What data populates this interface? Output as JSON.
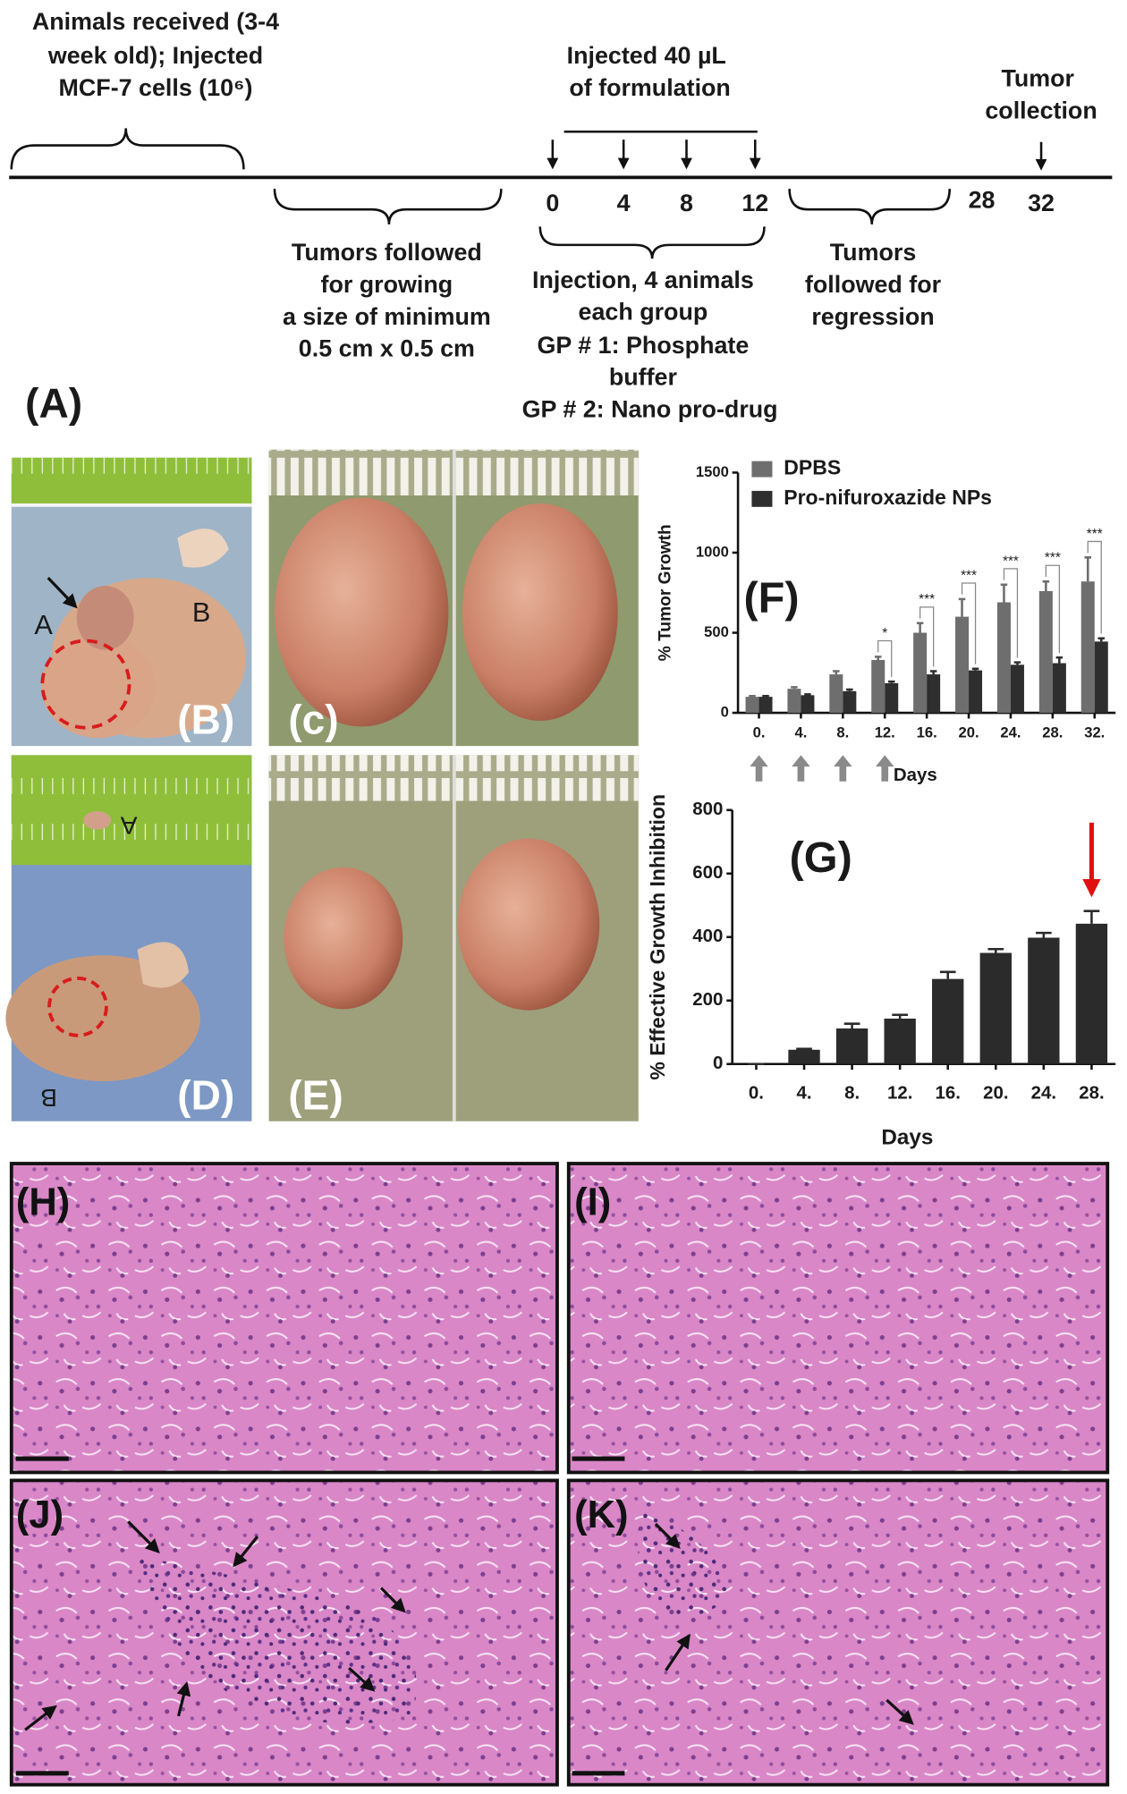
{
  "timeline": {
    "received": [
      "Animals  received (3-4",
      "week old); Injected",
      "MCF-7 cells (10⁶)"
    ],
    "injected": [
      "Injected 40 µL",
      "of formulation"
    ],
    "collection": [
      "Tumor",
      "collection"
    ],
    "days": [
      0,
      4,
      8,
      12,
      28,
      32
    ],
    "growing": [
      "Tumors followed",
      "for growing",
      "a size of minimum",
      "0.5 cm x 0.5 cm"
    ],
    "injection": [
      "Injection, 4 animals",
      "each group",
      "GP # 1: Phosphate",
      "buffer",
      "GP # 2: Nano pro-drug"
    ],
    "regression": [
      "Tumors",
      "followed for",
      "regression"
    ],
    "label": "(A)"
  },
  "photos": [
    {
      "label": "(B)",
      "letters": [
        "A",
        "B"
      ]
    },
    {
      "label": "(c)"
    },
    {
      "label": "(D)",
      "letters": [
        "A",
        "B"
      ]
    },
    {
      "label": "(E)"
    }
  ],
  "histology_labels": [
    "(H)",
    "(I)",
    "(J)",
    "(K)"
  ],
  "chart_data": [
    {
      "type": "bar",
      "panel_label": "(F)",
      "y_label": "% Tumor Growth",
      "x_label": "Days",
      "categories": [
        "0.",
        "4.",
        "8.",
        "12.",
        "16.",
        "20.",
        "24.",
        "28.",
        "32."
      ],
      "series": [
        {
          "name": "DPBS",
          "color": "#6e6e6e",
          "values": [
            100,
            150,
            240,
            330,
            500,
            600,
            690,
            760,
            820
          ],
          "errors": [
            5,
            10,
            20,
            20,
            60,
            110,
            110,
            60,
            150
          ]
        },
        {
          "name": "Pro-nifuroxazide NPs",
          "color": "#2e2e2e",
          "values": [
            100,
            110,
            135,
            185,
            240,
            265,
            300,
            310,
            445
          ],
          "errors": [
            5,
            5,
            10,
            10,
            20,
            10,
            15,
            35,
            20
          ]
        }
      ],
      "significance": [
        null,
        null,
        null,
        "*",
        "***",
        "***",
        "***",
        "***",
        "***"
      ],
      "ylim": [
        0,
        1500
      ],
      "yticks": [
        0,
        500,
        1000,
        1500
      ],
      "legend": "upper left"
    },
    {
      "type": "bar",
      "panel_label": "(G)",
      "y_label": "% Effective Growth Inhibition",
      "x_label": "Days",
      "categories": [
        "0.",
        "4.",
        "8.",
        "12.",
        "16.",
        "20.",
        "24.",
        "28."
      ],
      "color": "#2b2b2b",
      "values": [
        0,
        45,
        112,
        143,
        268,
        350,
        398,
        442
      ],
      "errors": [
        0,
        3,
        15,
        12,
        22,
        12,
        15,
        40
      ],
      "ylim": [
        0,
        800
      ],
      "yticks": [
        0,
        200,
        400,
        600,
        800
      ]
    }
  ]
}
